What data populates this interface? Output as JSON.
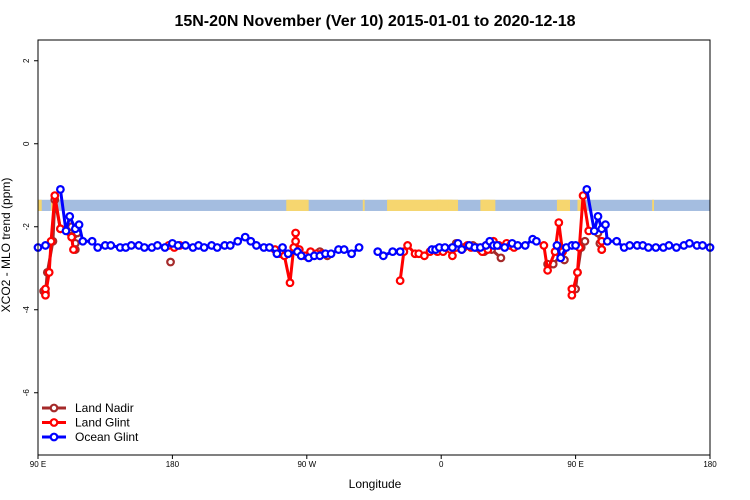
{
  "chart_data": {
    "type": "line",
    "title": "15N-20N November (Ver 10)   2015-01-01 to 2020-12-18",
    "xlabel": "Longitude",
    "ylabel": "XCO2 - MLO trend (ppm)",
    "xlim": [
      -90,
      270
    ],
    "ylim": [
      -7.5,
      2.5
    ],
    "x_ticks": [
      -90,
      -18,
      54,
      126,
      198,
      270
    ],
    "x_tick_labels": [
      "90 E",
      "180",
      "90 W",
      "0",
      "90 E",
      "180"
    ],
    "y_ticks": [
      2,
      0,
      -2,
      -4,
      -6
    ],
    "y_tick_labels": [
      "2",
      "0",
      "-2",
      "-4",
      "-6"
    ],
    "grid": false,
    "legend_position": "bottom-left",
    "land_strip": {
      "y_top": -1.35,
      "y_bottom": -1.62,
      "ocean_color": "#a4bde0",
      "land_color": "#f6d66f",
      "land_segments": [
        [
          -90,
          -88
        ],
        [
          -83,
          -80
        ],
        [
          43,
          55
        ],
        [
          84,
          85
        ],
        [
          97,
          126
        ],
        [
          123,
          130
        ],
        [
          124,
          132
        ],
        [
          130,
          135
        ],
        [
          148,
          152
        ],
        [
          147,
          155
        ],
        [
          188,
          195
        ],
        [
          199,
          203
        ],
        [
          239,
          240
        ]
      ]
    },
    "series": [
      {
        "name": "Land Nadir",
        "color": "#a52a2a",
        "segments": [
          [
            [
              -87,
              -3.55
            ],
            [
              -86,
              -3.6
            ],
            [
              -85,
              -3.1
            ],
            [
              -82,
              -2.35
            ],
            [
              -81,
              -1.35
            ],
            [
              -78,
              -2.05
            ],
            [
              -71,
              -2.2
            ],
            [
              -70,
              -2.4
            ],
            [
              -70,
              -2.55
            ]
          ],
          [
            [
              -72,
              -2.0
            ],
            [
              -69,
              -2.15
            ]
          ],
          [
            [
              -19,
              -2.85
            ]
          ],
          [
            [
              61,
              -2.6
            ],
            [
              63,
              -2.65
            ],
            [
              65,
              -2.7
            ]
          ],
          [
            [
              132,
              -2.5
            ],
            [
              134,
              -2.4
            ],
            [
              138,
              -2.5
            ],
            [
              143,
              -2.45
            ]
          ],
          [
            [
              145,
              -2.5
            ],
            [
              147,
              -2.55
            ],
            [
              149,
              -2.6
            ],
            [
              153,
              -2.55
            ],
            [
              158,
              -2.75
            ]
          ],
          [
            [
              183,
              -2.9
            ],
            [
              186,
              -2.9
            ],
            [
              190,
              -2.7
            ],
            [
              191,
              -2.6
            ],
            [
              192,
              -2.8
            ]
          ],
          [
            [
              198,
              -3.5
            ],
            [
              199,
              -3.1
            ],
            [
              201,
              -2.5
            ],
            [
              203,
              -2.35
            ]
          ],
          [
            [
              210,
              -2.15
            ],
            [
              211,
              -2.4
            ],
            [
              212,
              -2.55
            ]
          ]
        ]
      },
      {
        "name": "Land Glint",
        "color": "#ff0000",
        "segments": [
          [
            [
              -86,
              -3.5
            ],
            [
              -86,
              -3.65
            ],
            [
              -84,
              -3.1
            ],
            [
              -83,
              -2.35
            ],
            [
              -81,
              -1.25
            ],
            [
              -78,
              -2.05
            ],
            [
              -72,
              -2.25
            ],
            [
              -71,
              -2.55
            ]
          ],
          [
            [
              -20,
              -2.45
            ],
            [
              -17,
              -2.5
            ],
            [
              -14,
              -2.45
            ]
          ],
          [
            [
              37,
              -2.55
            ],
            [
              40,
              -2.65
            ],
            [
              42,
              -2.7
            ],
            [
              45,
              -3.35
            ],
            [
              47,
              -2.5
            ],
            [
              48,
              -2.15
            ],
            [
              48,
              -2.35
            ],
            [
              50,
              -2.55
            ],
            [
              53,
              -2.7
            ],
            [
              56,
              -2.6
            ],
            [
              59,
              -2.65
            ],
            [
              62,
              -2.65
            ]
          ],
          [
            [
              104,
              -3.3
            ],
            [
              106,
              -2.6
            ],
            [
              108,
              -2.45
            ],
            [
              112,
              -2.65
            ],
            [
              114,
              -2.65
            ],
            [
              117,
              -2.7
            ],
            [
              120,
              -2.6
            ],
            [
              124,
              -2.6
            ],
            [
              127,
              -2.6
            ],
            [
              131,
              -2.55
            ],
            [
              132,
              -2.7
            ],
            [
              134,
              -2.5
            ],
            [
              137,
              -2.55
            ],
            [
              140,
              -2.45
            ],
            [
              142,
              -2.5
            ]
          ],
          [
            [
              148,
              -2.6
            ],
            [
              150,
              -2.45
            ],
            [
              151,
              -2.55
            ],
            [
              154,
              -2.35
            ],
            [
              157,
              -2.45
            ],
            [
              161,
              -2.4
            ],
            [
              163,
              -2.45
            ],
            [
              165,
              -2.5
            ]
          ],
          [
            [
              181,
              -2.45
            ],
            [
              183,
              -3.05
            ],
            [
              187,
              -2.6
            ],
            [
              189,
              -1.9
            ],
            [
              191,
              -2.6
            ]
          ],
          [
            [
              196,
              -3.5
            ],
            [
              196,
              -3.65
            ],
            [
              199,
              -3.1
            ],
            [
              200,
              -2.5
            ],
            [
              202,
              -1.25
            ],
            [
              205,
              -2.1
            ]
          ],
          [
            [
              212,
              -2.35
            ],
            [
              212,
              -2.55
            ]
          ]
        ]
      },
      {
        "name": "Ocean Glint",
        "color": "#0000ff",
        "segments": [
          [
            [
              -90,
              -2.5
            ],
            [
              -86,
              -2.45
            ]
          ],
          [
            [
              -78,
              -1.1
            ],
            [
              -75,
              -2.1
            ],
            [
              -73,
              -1.75
            ],
            [
              -70,
              -2.05
            ],
            [
              -68,
              -1.95
            ],
            [
              -66,
              -2.35
            ],
            [
              -61,
              -2.35
            ],
            [
              -58,
              -2.5
            ],
            [
              -54,
              -2.45
            ],
            [
              -51,
              -2.45
            ],
            [
              -46,
              -2.5
            ],
            [
              -43,
              -2.5
            ],
            [
              -40,
              -2.45
            ],
            [
              -36,
              -2.45
            ],
            [
              -33,
              -2.5
            ],
            [
              -29,
              -2.5
            ],
            [
              -26,
              -2.45
            ],
            [
              -22,
              -2.5
            ],
            [
              -18,
              -2.4
            ],
            [
              -15,
              -2.45
            ],
            [
              -11,
              -2.45
            ],
            [
              -7,
              -2.5
            ],
            [
              -4,
              -2.45
            ],
            [
              -1,
              -2.5
            ],
            [
              3,
              -2.45
            ],
            [
              6,
              -2.5
            ],
            [
              10,
              -2.45
            ],
            [
              13,
              -2.45
            ],
            [
              17,
              -2.35
            ],
            [
              21,
              -2.25
            ],
            [
              24,
              -2.35
            ],
            [
              27,
              -2.45
            ],
            [
              31,
              -2.5
            ],
            [
              34,
              -2.5
            ],
            [
              38,
              -2.65
            ],
            [
              41,
              -2.5
            ],
            [
              44,
              -2.65
            ],
            [
              49,
              -2.6
            ],
            [
              51,
              -2.7
            ],
            [
              55,
              -2.75
            ],
            [
              58,
              -2.7
            ],
            [
              61,
              -2.7
            ],
            [
              64,
              -2.65
            ],
            [
              67,
              -2.65
            ],
            [
              71,
              -2.55
            ],
            [
              74,
              -2.55
            ],
            [
              78,
              -2.65
            ],
            [
              82,
              -2.5
            ]
          ],
          [
            [
              92,
              -2.6
            ],
            [
              95,
              -2.7
            ],
            [
              100,
              -2.6
            ],
            [
              104,
              -2.6
            ]
          ],
          [
            [
              121,
              -2.55
            ],
            [
              123,
              -2.55
            ],
            [
              125,
              -2.5
            ],
            [
              128,
              -2.5
            ],
            [
              132,
              -2.5
            ],
            [
              135,
              -2.4
            ],
            [
              137,
              -2.55
            ],
            [
              141,
              -2.45
            ],
            [
              144,
              -2.5
            ],
            [
              147,
              -2.5
            ],
            [
              150,
              -2.45
            ],
            [
              152,
              -2.35
            ],
            [
              154,
              -2.45
            ],
            [
              156,
              -2.45
            ],
            [
              160,
              -2.5
            ],
            [
              164,
              -2.4
            ],
            [
              167,
              -2.45
            ],
            [
              171,
              -2.45
            ],
            [
              175,
              -2.3
            ],
            [
              177,
              -2.35
            ]
          ],
          [
            [
              188,
              -2.45
            ],
            [
              190,
              -2.75
            ],
            [
              193,
              -2.5
            ],
            [
              196,
              -2.45
            ],
            [
              198,
              -2.45
            ]
          ],
          [
            [
              204,
              -1.1
            ],
            [
              208,
              -2.1
            ],
            [
              210,
              -1.75
            ],
            [
              212,
              -2.05
            ],
            [
              214,
              -1.95
            ],
            [
              215,
              -2.35
            ],
            [
              220,
              -2.35
            ],
            [
              224,
              -2.5
            ],
            [
              227,
              -2.45
            ],
            [
              231,
              -2.45
            ],
            [
              234,
              -2.45
            ],
            [
              237,
              -2.5
            ],
            [
              241,
              -2.5
            ],
            [
              245,
              -2.5
            ],
            [
              248,
              -2.45
            ],
            [
              252,
              -2.5
            ],
            [
              256,
              -2.45
            ],
            [
              259,
              -2.4
            ],
            [
              263,
              -2.45
            ],
            [
              266,
              -2.45
            ],
            [
              270,
              -2.5
            ]
          ]
        ]
      }
    ]
  }
}
